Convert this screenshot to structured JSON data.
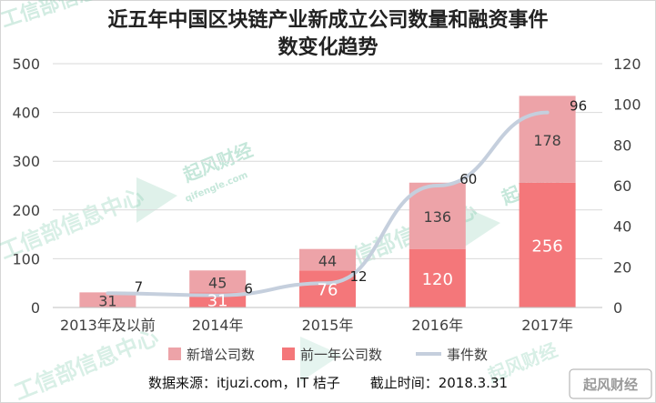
{
  "title_line1": "近五年中国区块链产业新成立公司数量和融资事件",
  "title_line2": "数变化趋势",
  "chart_data": {
    "type": "bar",
    "categories": [
      "2013年及以前",
      "2014年",
      "2015年",
      "2016年",
      "2017年"
    ],
    "series": [
      {
        "name": "前一年公司数",
        "values": [
          0,
          31,
          76,
          120,
          256
        ],
        "labels": [
          "",
          "31",
          "76",
          "120",
          "256"
        ],
        "color": "#f4777a"
      },
      {
        "name": "新增公司数",
        "values": [
          31,
          45,
          44,
          136,
          178
        ],
        "labels": [
          "31",
          "45",
          "44",
          "136",
          "178"
        ],
        "color": "#eda3a8"
      },
      {
        "name": "事件数",
        "type": "line",
        "axis": "right",
        "values": [
          7,
          6,
          12,
          60,
          96
        ],
        "labels": [
          "7",
          "6",
          "12",
          "60",
          "96"
        ],
        "color": "#c5cfdd"
      }
    ],
    "ylim_left": [
      0,
      500
    ],
    "yticks_left": [
      0,
      100,
      200,
      300,
      400,
      500
    ],
    "ylim_right": [
      0,
      120
    ],
    "yticks_right": [
      0,
      20,
      40,
      60,
      80,
      100,
      120
    ],
    "legend_position": "bottom",
    "grid": true
  },
  "legend": [
    {
      "label": "新增公司数",
      "color": "#eda3a8",
      "kind": "box"
    },
    {
      "label": "前一年公司数",
      "color": "#f4777a",
      "kind": "box"
    },
    {
      "label": "事件数",
      "color": "#c5cfdd",
      "kind": "line"
    }
  ],
  "footer": {
    "source": "数据来源：itjuzi.com，IT 桔子",
    "cutoff": "截止时间：2018.3.31"
  },
  "watermarks": {
    "brand_cn": "工信部信息中心",
    "brand2_cn": "起风财经",
    "brand2_en": "qifengle.com",
    "logo_text": "起风财经"
  }
}
